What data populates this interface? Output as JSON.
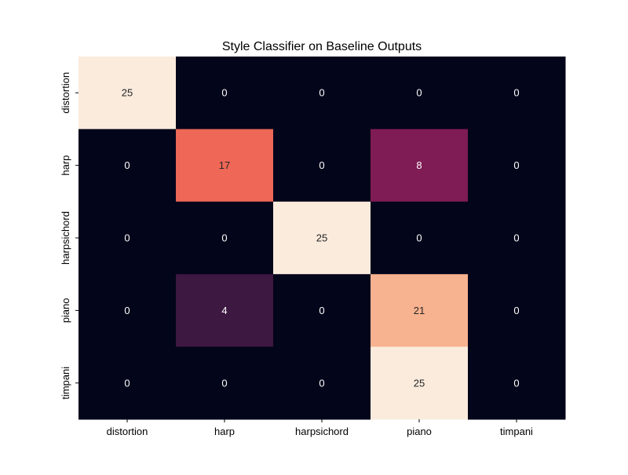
{
  "chart_data": {
    "type": "heatmap",
    "title": "Style Classifier on Baseline Outputs",
    "xlabel": "",
    "ylabel": "",
    "x_categories": [
      "distortion",
      "harp",
      "harpsichord",
      "piano",
      "timpani"
    ],
    "y_categories": [
      "distortion",
      "harp",
      "harpsichord",
      "piano",
      "timpani"
    ],
    "values": [
      [
        25,
        0,
        0,
        0,
        0
      ],
      [
        0,
        17,
        0,
        8,
        0
      ],
      [
        0,
        0,
        25,
        0,
        0
      ],
      [
        0,
        4,
        0,
        21,
        0
      ],
      [
        0,
        0,
        0,
        25,
        0
      ]
    ],
    "vmin": 0,
    "vmax": 25,
    "colormap": [
      "#03051a",
      "#4c1d4b",
      "#a11a5b",
      "#e83f3f",
      "#f6a47c",
      "#faebdd"
    ],
    "annotation_colors": {
      "on_dark": "#ffffff",
      "on_light": "#262626"
    },
    "colorbar": false,
    "grid": false
  }
}
